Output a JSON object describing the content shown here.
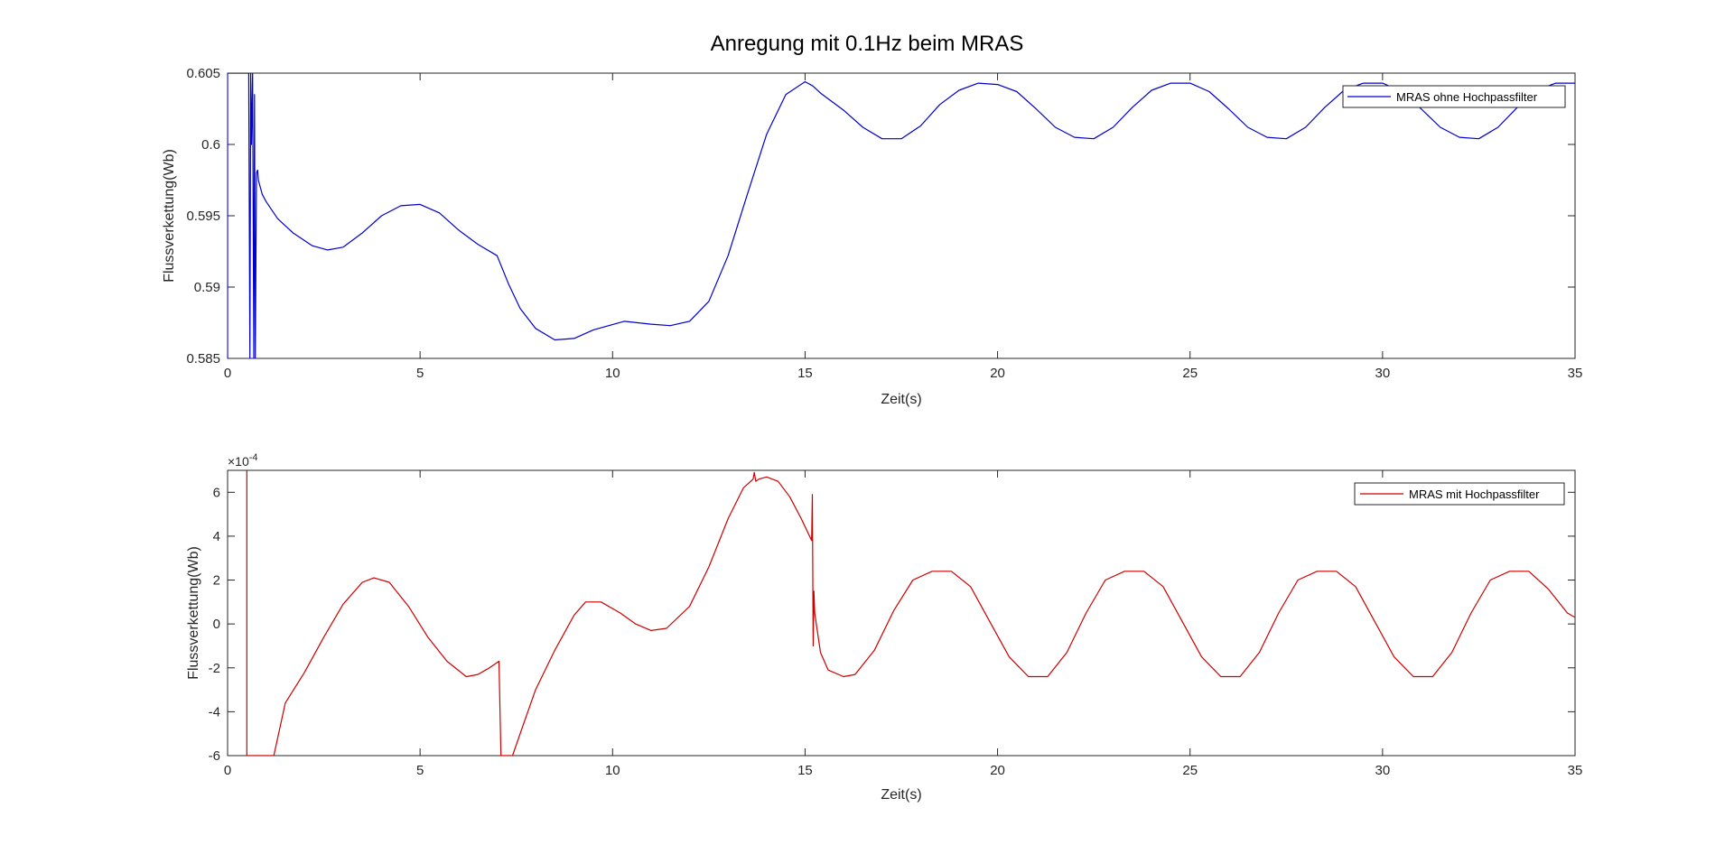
{
  "figure_title": "Anregung mit 0.1Hz beim MRAS",
  "chart_data": [
    {
      "type": "line",
      "xlabel": "Zeit(s)",
      "ylabel": "Flussverkettung(Wb)",
      "xlim": [
        0,
        35
      ],
      "ylim": [
        0.585,
        0.605
      ],
      "xticks": [
        0,
        5,
        10,
        15,
        20,
        25,
        30,
        35
      ],
      "yticks": [
        0.585,
        0.59,
        0.595,
        0.6,
        0.605
      ],
      "ytick_labels": [
        "0.585",
        "0.59",
        "0.595",
        "0.6",
        "0.605"
      ],
      "legend_position": "top-right",
      "grid": false,
      "series": [
        {
          "name": "MRAS ohne Hochpassfilter",
          "color": "#0000cc",
          "x": [
            0,
            0.001,
            0.001,
            0.55,
            0.58,
            0.6,
            0.62,
            0.65,
            0.68,
            0.7,
            0.72,
            0.75,
            0.78,
            0.8,
            0.85,
            0.9,
            1.0,
            1.3,
            1.7,
            2.2,
            2.6,
            3.0,
            3.5,
            4.0,
            4.5,
            5.0,
            5.5,
            6.0,
            6.5,
            7.0,
            7.3,
            7.6,
            8.0,
            8.5,
            9.0,
            9.5,
            10.3,
            11.0,
            11.5,
            12.0,
            12.5,
            13.0,
            13.5,
            14.0,
            14.5,
            15.0,
            15.2,
            15.4,
            16.0,
            16.5,
            17.0,
            17.5,
            18.0,
            18.5,
            19.0,
            19.5,
            20.0,
            20.5,
            21.0,
            21.5,
            22.0,
            22.5,
            23.0,
            23.5,
            24.0,
            24.5,
            25.0,
            25.5,
            26.0,
            26.5,
            27.0,
            27.5,
            28.0,
            28.5,
            29.0,
            29.5,
            30.0,
            30.5,
            31.0,
            31.5,
            32.0,
            32.5,
            33.0,
            33.5,
            34.0,
            34.5,
            35.0
          ],
          "y": [
            0.585,
            0.585,
            0.605,
            0.605,
            0.585,
            0.605,
            0.6,
            0.605,
            0.585,
            0.6035,
            0.585,
            0.598,
            0.5982,
            0.5975,
            0.597,
            0.5965,
            0.596,
            0.5948,
            0.5938,
            0.5929,
            0.5926,
            0.5928,
            0.5938,
            0.595,
            0.5957,
            0.5958,
            0.5952,
            0.594,
            0.593,
            0.5922,
            0.5902,
            0.5885,
            0.5871,
            0.5863,
            0.5864,
            0.587,
            0.5876,
            0.5874,
            0.5873,
            0.5876,
            0.589,
            0.5922,
            0.5965,
            0.6007,
            0.6035,
            0.6044,
            0.6041,
            0.6036,
            0.6024,
            0.6012,
            0.6004,
            0.6004,
            0.6013,
            0.6028,
            0.6038,
            0.6043,
            0.6042,
            0.6037,
            0.6025,
            0.6012,
            0.6005,
            0.6004,
            0.6012,
            0.6026,
            0.6038,
            0.6043,
            0.6043,
            0.6037,
            0.6025,
            0.6012,
            0.6005,
            0.6004,
            0.6012,
            0.6026,
            0.6038,
            0.6043,
            0.6043,
            0.6037,
            0.6025,
            0.6012,
            0.6005,
            0.6004,
            0.6012,
            0.6026,
            0.6038,
            0.6043,
            0.6043
          ]
        }
      ]
    },
    {
      "type": "line",
      "xlabel": "Zeit(s)",
      "ylabel": "Flussverkettung(Wb)",
      "xlim": [
        0,
        35
      ],
      "ylim": [
        -6,
        7
      ],
      "y_exponent_label": "×10",
      "y_exponent_power": "-4",
      "xticks": [
        0,
        5,
        10,
        15,
        20,
        25,
        30,
        35
      ],
      "yticks": [
        -6,
        -4,
        -2,
        0,
        2,
        4,
        6
      ],
      "ytick_labels": [
        "-6",
        "-4",
        "-2",
        "0",
        "2",
        "4",
        "6"
      ],
      "legend_position": "top-right",
      "grid": false,
      "series": [
        {
          "name": "MRAS mit Hochpassfilter",
          "color": "#cc0000",
          "x": [
            0.5,
            0.5,
            0.5,
            1.2,
            1.5,
            2.0,
            2.5,
            3.0,
            3.5,
            3.8,
            4.2,
            4.7,
            5.2,
            5.7,
            6.2,
            6.5,
            6.8,
            7.05,
            7.1,
            7.15,
            7.4,
            7.7,
            8.0,
            8.5,
            9.0,
            9.3,
            9.7,
            10.2,
            10.6,
            11.0,
            11.4,
            12.0,
            12.5,
            13.0,
            13.4,
            13.65,
            13.68,
            13.72,
            13.8,
            14.0,
            14.3,
            14.6,
            14.9,
            15.17,
            15.19,
            15.21,
            15.23,
            15.25,
            15.4,
            15.6,
            16.0,
            16.3,
            16.8,
            17.3,
            17.8,
            18.3,
            18.8,
            19.3,
            19.8,
            20.3,
            20.8,
            21.3,
            21.8,
            22.3,
            22.8,
            23.3,
            23.8,
            24.3,
            24.8,
            25.3,
            25.8,
            26.3,
            26.8,
            27.3,
            27.8,
            28.3,
            28.8,
            29.3,
            29.8,
            30.3,
            30.8,
            31.3,
            31.8,
            32.3,
            32.8,
            33.3,
            33.8,
            34.3,
            34.8,
            35.0
          ],
          "y": [
            -6,
            7,
            -6,
            -6,
            -3.6,
            -2.2,
            -0.6,
            0.9,
            1.9,
            2.1,
            1.9,
            0.8,
            -0.6,
            -1.7,
            -2.4,
            -2.3,
            -2.0,
            -1.7,
            -6,
            -6,
            -6,
            -4.5,
            -3.0,
            -1.2,
            0.4,
            1.0,
            1.0,
            0.5,
            0,
            -0.3,
            -0.2,
            0.8,
            2.6,
            4.8,
            6.2,
            6.6,
            6.9,
            6.5,
            6.6,
            6.7,
            6.5,
            5.8,
            4.8,
            3.8,
            5.9,
            -1.0,
            1.5,
            0.5,
            -1.3,
            -2.1,
            -2.4,
            -2.3,
            -1.2,
            0.6,
            2.0,
            2.4,
            2.4,
            1.7,
            0.1,
            -1.5,
            -2.4,
            -2.4,
            -1.3,
            0.5,
            2.0,
            2.4,
            2.4,
            1.7,
            0.1,
            -1.5,
            -2.4,
            -2.4,
            -1.3,
            0.5,
            2.0,
            2.4,
            2.4,
            1.7,
            0.1,
            -1.5,
            -2.4,
            -2.4,
            -1.3,
            0.5,
            2.0,
            2.4,
            2.4,
            1.6,
            0.5,
            0.3
          ]
        }
      ]
    }
  ]
}
